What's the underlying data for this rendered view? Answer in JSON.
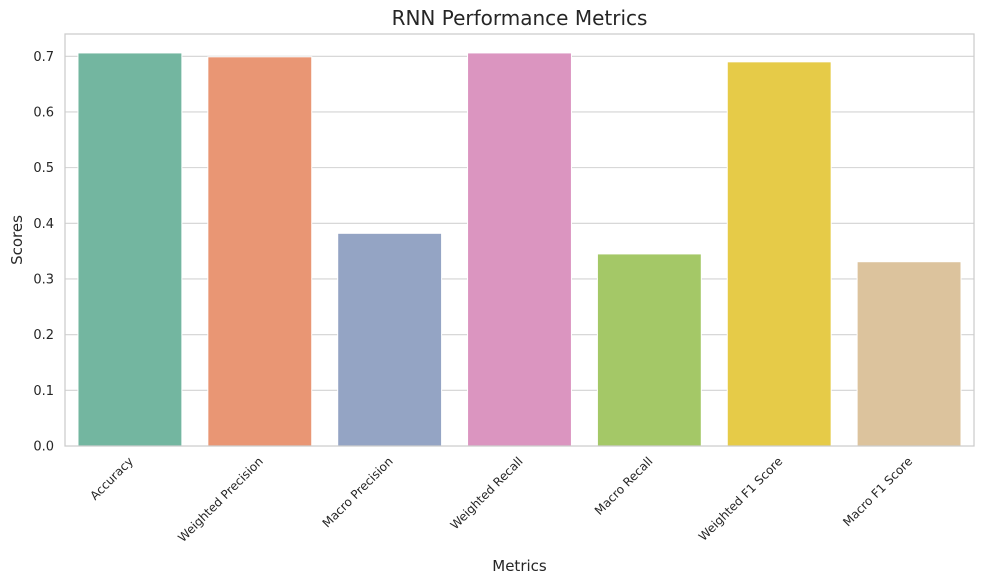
{
  "chart_data": {
    "type": "bar",
    "title": "RNN Performance Metrics",
    "xlabel": "Metrics",
    "ylabel": "Scores",
    "categories": [
      "Accuracy",
      "Weighted Precision",
      "Macro Precision",
      "Weighted Recall",
      "Macro Recall",
      "Weighted F1 Score",
      "Macro F1 Score"
    ],
    "values": [
      0.706,
      0.699,
      0.382,
      0.706,
      0.345,
      0.69,
      0.331
    ],
    "colors": [
      "#73b6a0",
      "#e99674",
      "#94a4c4",
      "#db95c0",
      "#a4c867",
      "#e6cb48",
      "#dcc39d"
    ],
    "ylim": [
      0,
      0.74
    ],
    "yticks": [
      0.0,
      0.1,
      0.2,
      0.3,
      0.4,
      0.5,
      0.6,
      0.7
    ],
    "ytick_labels": [
      "0.0",
      "0.1",
      "0.2",
      "0.3",
      "0.4",
      "0.5",
      "0.6",
      "0.7"
    ],
    "grid": true,
    "grid_axis": "y",
    "legend": "none"
  }
}
